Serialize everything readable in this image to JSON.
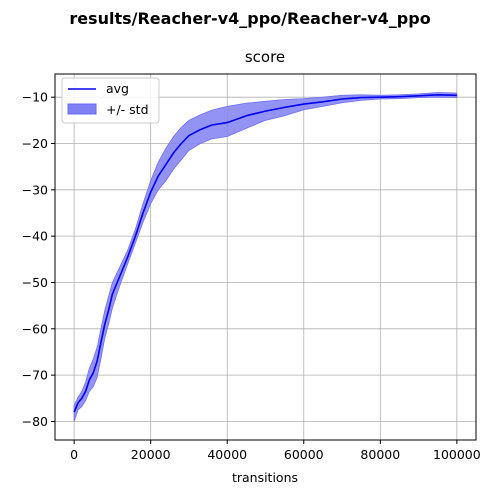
{
  "chart_data": {
    "type": "line",
    "suptitle": "results/Reacher-v4_ppo/Reacher-v4_ppo",
    "title": "score",
    "xlabel": "transitions",
    "ylabel": "",
    "xlim": [
      -5000,
      105000
    ],
    "ylim": [
      -84,
      -5
    ],
    "xticks": [
      0,
      20000,
      40000,
      60000,
      80000,
      100000
    ],
    "xtick_labels": [
      "0",
      "20000",
      "40000",
      "60000",
      "80000",
      "100000"
    ],
    "yticks": [
      -80,
      -70,
      -60,
      -50,
      -40,
      -30,
      -20,
      -10
    ],
    "ytick_labels": [
      "−80",
      "−70",
      "−60",
      "−50",
      "−40",
      "−30",
      "−20",
      "−10"
    ],
    "grid": true,
    "legend": {
      "position": "top-left",
      "entries": [
        "avg",
        "+/- std"
      ]
    },
    "colors": {
      "line": "#0000ee",
      "band": "#8080f5",
      "grid": "#b0b0b0"
    },
    "series": [
      {
        "name": "avg",
        "x": [
          0,
          1000,
          2000,
          3000,
          4000,
          5000,
          6000,
          7000,
          8000,
          9000,
          10000,
          12000,
          14000,
          16000,
          18000,
          20000,
          22000,
          24000,
          26000,
          28000,
          30000,
          33000,
          36000,
          40000,
          45000,
          50000,
          55000,
          60000,
          65000,
          70000,
          75000,
          80000,
          85000,
          90000,
          95000,
          100000
        ],
        "y": [
          -78,
          -76,
          -75,
          -73.5,
          -71,
          -69.5,
          -67,
          -63,
          -59,
          -56,
          -52.5,
          -48.5,
          -44.5,
          -40,
          -35,
          -30.5,
          -27,
          -24.5,
          -22,
          -20,
          -18.3,
          -17,
          -16,
          -15.5,
          -14,
          -13,
          -12.2,
          -11.5,
          -11,
          -10.4,
          -10.1,
          -10,
          -9.9,
          -9.7,
          -9.5,
          -9.6
        ]
      },
      {
        "name": "+/- std",
        "x": [
          0,
          1000,
          2000,
          3000,
          4000,
          5000,
          6000,
          7000,
          8000,
          9000,
          10000,
          12000,
          14000,
          16000,
          18000,
          20000,
          22000,
          24000,
          26000,
          28000,
          30000,
          33000,
          36000,
          40000,
          45000,
          50000,
          55000,
          60000,
          65000,
          70000,
          75000,
          80000,
          85000,
          90000,
          95000,
          100000
        ],
        "upper": [
          -76.5,
          -74.8,
          -73.5,
          -71.5,
          -68.5,
          -66.5,
          -64,
          -60,
          -56,
          -53,
          -50,
          -46.5,
          -43,
          -38.5,
          -33,
          -28,
          -24,
          -21,
          -18.5,
          -16.5,
          -15,
          -13.8,
          -12.8,
          -12,
          -11.3,
          -10.9,
          -10.5,
          -10.3,
          -10,
          -9.6,
          -9.5,
          -9.6,
          -9.5,
          -9.3,
          -9,
          -9.1
        ],
        "lower": [
          -80,
          -77.5,
          -76.8,
          -75.5,
          -73.5,
          -72.5,
          -70.5,
          -66.5,
          -62,
          -59,
          -55.5,
          -50.5,
          -46,
          -41.5,
          -37,
          -33,
          -30,
          -28,
          -25.5,
          -23.5,
          -21.5,
          -20,
          -19,
          -18.5,
          -16.7,
          -15,
          -14,
          -12.7,
          -12,
          -11.2,
          -10.7,
          -10.4,
          -10.3,
          -10.1,
          -10,
          -10.1
        ]
      }
    ]
  }
}
